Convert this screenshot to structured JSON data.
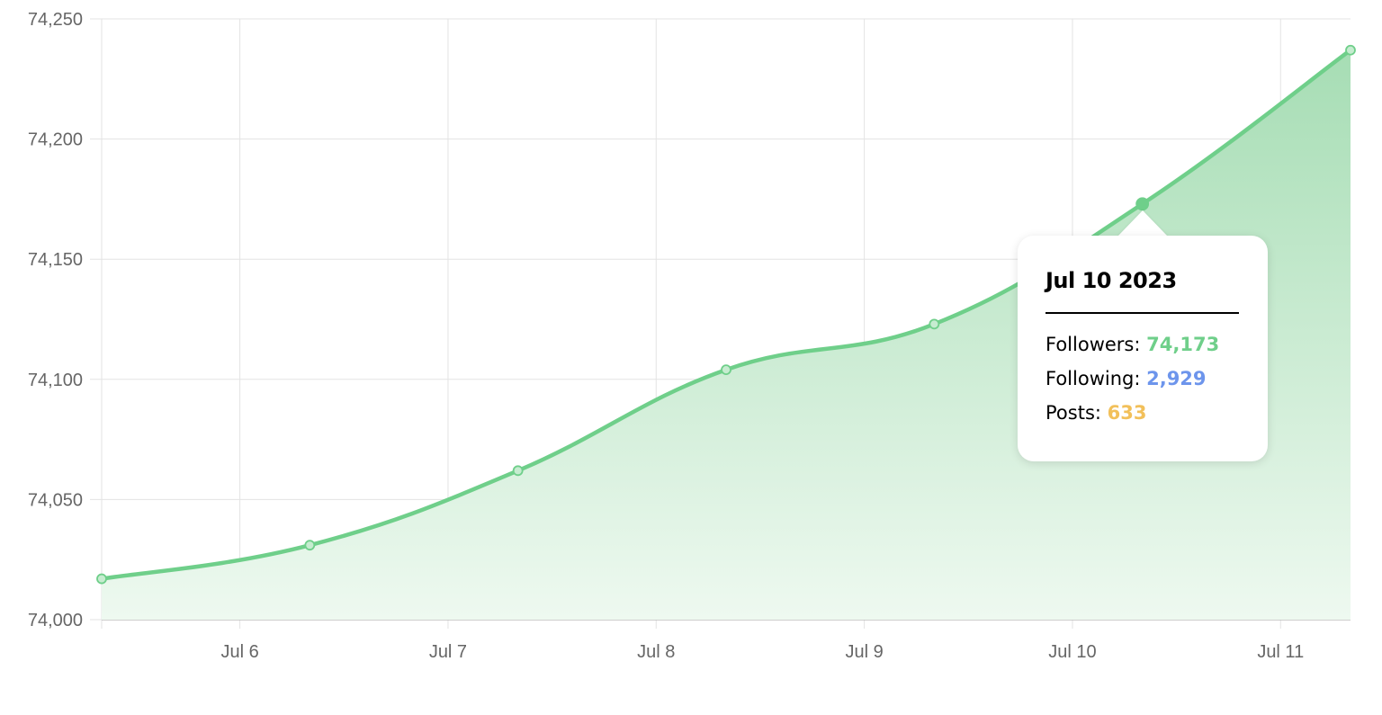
{
  "chart_data": {
    "type": "area",
    "x": [
      "2023-07-05",
      "2023-07-06",
      "2023-07-07",
      "2023-07-08",
      "2023-07-09",
      "2023-07-10",
      "2023-07-11"
    ],
    "series": [
      {
        "values": [
          74017,
          74031,
          74062,
          74104,
          74123,
          74173,
          74237
        ]
      }
    ],
    "x_tick_labels": [
      "Jul 6",
      "Jul 7",
      "Jul 8",
      "Jul 9",
      "Jul 10",
      "Jul 11"
    ],
    "y_tick_labels": [
      "74,250",
      "74,200",
      "74,150",
      "74,100",
      "74,050",
      "74,000"
    ],
    "ylim": [
      74000,
      74250
    ],
    "grid": true,
    "colors": {
      "line": "#6fcf8a",
      "fill_top": "#a6ddb4",
      "fill_bottom": "#eef9f0",
      "grid": "#e3e3e3"
    }
  },
  "tooltip": {
    "title": "Jul 10 2023",
    "rows": [
      {
        "label": "Followers:",
        "value": "74,173",
        "color": "#6fcf8a"
      },
      {
        "label": "Following:",
        "value": "2,929",
        "color": "#6d95ec"
      },
      {
        "label": "Posts:",
        "value": "633",
        "color": "#f2c05a"
      }
    ]
  }
}
